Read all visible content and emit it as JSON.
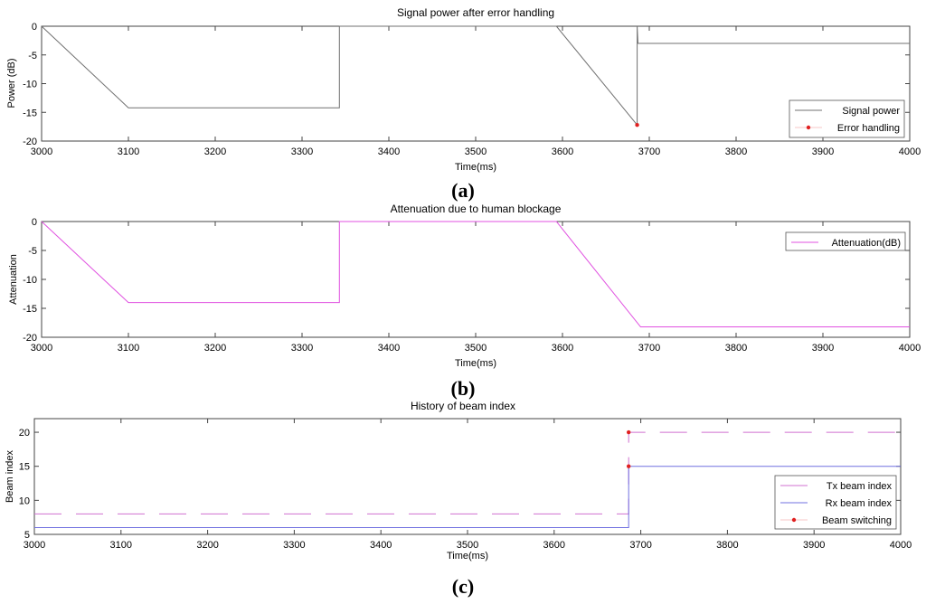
{
  "chart_data": [
    {
      "type": "line",
      "panel_label": "(a)",
      "title": "Signal power after error handling",
      "xlabel": "Time(ms)",
      "ylabel": "Power (dB)",
      "xlim": [
        3000,
        4000
      ],
      "ylim": [
        -20,
        0
      ],
      "xticks": [
        "3000",
        "3100",
        "3200",
        "3300",
        "3400",
        "3500",
        "3600",
        "3700",
        "3800",
        "3900",
        "4000"
      ],
      "yticks": [
        "-20",
        "-15",
        "-10",
        "-5",
        "0"
      ],
      "legend_position": "bottom-right",
      "series": [
        {
          "name": "Signal power",
          "color": "#707070",
          "style": "line",
          "x": [
            3000,
            3100,
            3343,
            3343,
            3593,
            3686,
            3686,
            3687,
            4000
          ],
          "y": [
            0,
            -14.2,
            -14.2,
            0,
            0,
            -17.2,
            0,
            -3,
            -3
          ]
        },
        {
          "name": "Error handling",
          "color": "#e02020",
          "style": "marker",
          "x": [
            3686
          ],
          "y": [
            -17.2
          ]
        }
      ]
    },
    {
      "type": "line",
      "panel_label": "(b)",
      "title": "Attenuation due to human blockage",
      "xlabel": "Time(ms)",
      "ylabel": "Attenuation",
      "xlim": [
        3000,
        4000
      ],
      "ylim": [
        -20,
        0
      ],
      "xticks": [
        "3000",
        "3100",
        "3200",
        "3300",
        "3400",
        "3500",
        "3600",
        "3700",
        "3800",
        "3900",
        "4000"
      ],
      "yticks": [
        "-20",
        "-15",
        "-10",
        "-5",
        "0"
      ],
      "legend_position": "top-right",
      "series": [
        {
          "name": "Attenuation(dB)",
          "color": "#e050e0",
          "style": "line",
          "x": [
            3000,
            3100,
            3343,
            3343,
            3593,
            3690,
            4000
          ],
          "y": [
            0,
            -14,
            -14,
            0,
            0,
            -18.2,
            -18.2
          ]
        }
      ]
    },
    {
      "type": "line",
      "panel_label": "(c)",
      "title": "History of beam index",
      "xlabel": "Time(ms)",
      "ylabel": "Beam index",
      "xlim": [
        3000,
        4000
      ],
      "ylim": [
        5,
        22
      ],
      "xticks": [
        "3000",
        "3100",
        "3200",
        "3300",
        "3400",
        "3500",
        "3600",
        "3700",
        "3800",
        "3900",
        "4000"
      ],
      "yticks": [
        "5",
        "10",
        "15",
        "20"
      ],
      "legend_position": "bottom-right",
      "series": [
        {
          "name": "Tx beam index",
          "color": "#d070d0",
          "style": "dashed",
          "x": [
            3000,
            3686,
            3686,
            4000
          ],
          "y": [
            8,
            8,
            20,
            20
          ]
        },
        {
          "name": "Rx beam index",
          "color": "#7070e0",
          "style": "line",
          "x": [
            3000,
            3686,
            3686,
            4000
          ],
          "y": [
            6,
            6,
            15,
            15
          ]
        },
        {
          "name": "Beam switching",
          "color": "#e02020",
          "style": "marker",
          "x": [
            3686,
            3686
          ],
          "y": [
            20,
            15
          ]
        }
      ]
    }
  ]
}
